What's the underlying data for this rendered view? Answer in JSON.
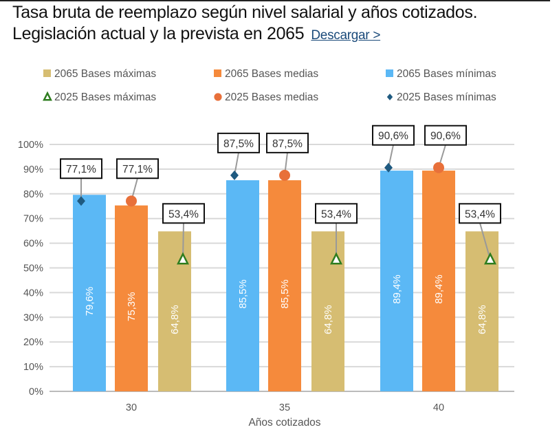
{
  "title": "Tasa bruta de reemplazo según nivel salarial y años cotizados. Legislación actual y la prevista en 2065",
  "download_link": "Descargar >",
  "chart_data": {
    "type": "bar",
    "xlabel": "Años cotizados",
    "ylabel": "",
    "ylim": [
      0,
      100
    ],
    "yticks": [
      "0%",
      "10%",
      "20%",
      "30%",
      "40%",
      "50%",
      "60%",
      "70%",
      "80%",
      "90%",
      "100%"
    ],
    "grid": true,
    "legend_placement": "top",
    "categories": [
      "30",
      "35",
      "40"
    ],
    "bar_series": [
      {
        "name": "2065 Bases mínimas",
        "values": [
          79.6,
          85.5,
          89.4
        ],
        "labels": [
          "79,6%",
          "85,5%",
          "89,4%"
        ],
        "color": "#5bb8f5"
      },
      {
        "name": "2065 Bases medias",
        "values": [
          75.3,
          85.5,
          89.4
        ],
        "labels": [
          "75,3%",
          "85,5%",
          "89,4%"
        ],
        "color": "#f58a3c"
      },
      {
        "name": "2065 Bases máximas",
        "values": [
          64.8,
          64.8,
          64.8
        ],
        "labels": [
          "64,8%",
          "64,8%",
          "64,8%"
        ],
        "color": "#d6bd72"
      }
    ],
    "marker_series": [
      {
        "name": "2025 Bases mínimas",
        "marker": "diamond",
        "values": [
          77.1,
          87.5,
          90.6
        ],
        "labels": [
          "77,1%",
          "87,5%",
          "90,6%"
        ],
        "color": "#1f5a80"
      },
      {
        "name": "2025 Bases medias",
        "marker": "circle",
        "values": [
          77.1,
          87.5,
          90.6
        ],
        "labels": [
          "77,1%",
          "87,5%",
          "90,6%"
        ],
        "color": "#e8703a"
      },
      {
        "name": "2025 Bases máximas",
        "marker": "triangle",
        "values": [
          53.4,
          53.4,
          53.4
        ],
        "labels": [
          "53,4%",
          "53,4%",
          "53,4%"
        ],
        "color": "#2e7d1f"
      }
    ],
    "legend": [
      "2065 Bases máximas",
      "2065 Bases medias",
      "2065 Bases mínimas",
      "2025 Bases máximas",
      "2025 Bases medias",
      "2025 Bases mínimas"
    ]
  }
}
